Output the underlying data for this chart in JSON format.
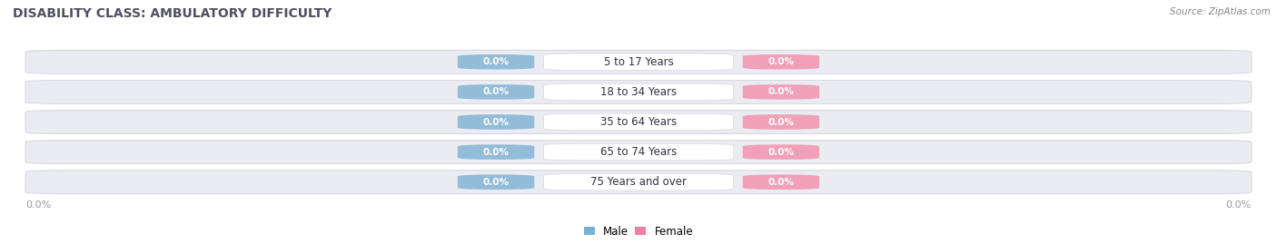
{
  "title": "DISABILITY CLASS: AMBULATORY DIFFICULTY",
  "source": "Source: ZipAtlas.com",
  "categories": [
    "5 to 17 Years",
    "18 to 34 Years",
    "35 to 64 Years",
    "65 to 74 Years",
    "75 Years and over"
  ],
  "male_values": [
    0.0,
    0.0,
    0.0,
    0.0,
    0.0
  ],
  "female_values": [
    0.0,
    0.0,
    0.0,
    0.0,
    0.0
  ],
  "male_color": "#92bcd8",
  "female_color": "#f0a0b8",
  "row_bg_color": "#ebebf2",
  "row_edge_color": "#d8d8e2",
  "center_box_color": "#ffffff",
  "center_box_edge": "#dcdce4",
  "title_color": "#505060",
  "source_color": "#888888",
  "axis_label_color": "#999999",
  "legend_male_color": "#7ab0d4",
  "legend_female_color": "#f080a0",
  "background_color": "#ffffff",
  "title_fontsize": 10,
  "source_fontsize": 7.5,
  "category_fontsize": 8.5,
  "value_fontsize": 7.5,
  "axis_tick_fontsize": 8
}
